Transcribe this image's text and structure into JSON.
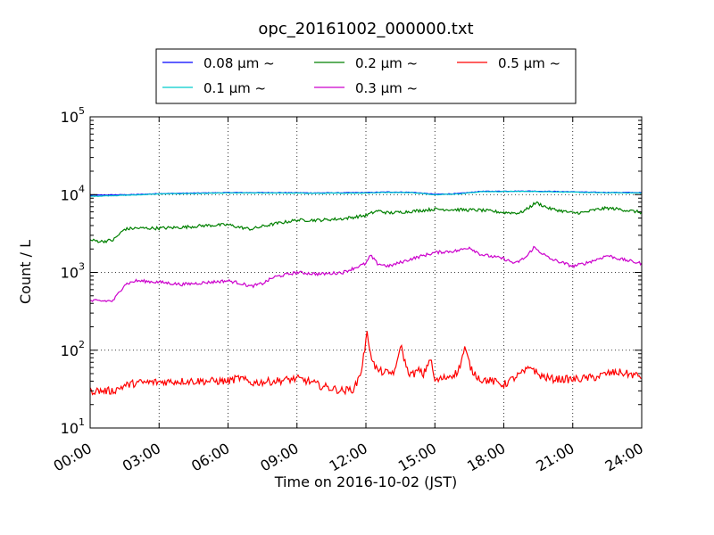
{
  "chart_data": {
    "type": "line",
    "title": "opc_20161002_000000.txt",
    "xlabel": "Time on 2016-10-02 (JST)",
    "ylabel": "Count / L",
    "y_scale": "log",
    "ylim": [
      10,
      100000
    ],
    "xlim_hours": [
      0,
      24
    ],
    "grid": true,
    "legend_placement": "top-center",
    "x_ticks": [
      "00:00",
      "03:00",
      "06:00",
      "09:00",
      "12:00",
      "15:00",
      "18:00",
      "21:00",
      "24:00"
    ],
    "x_tick_hours": [
      0,
      3,
      6,
      9,
      12,
      15,
      18,
      21,
      24
    ],
    "y_ticks": [
      {
        "base": "10",
        "exp": "1",
        "value": 10
      },
      {
        "base": "10",
        "exp": "2",
        "value": 100
      },
      {
        "base": "10",
        "exp": "3",
        "value": 1000
      },
      {
        "base": "10",
        "exp": "4",
        "value": 10000
      },
      {
        "base": "10",
        "exp": "5",
        "value": 100000
      }
    ],
    "series": [
      {
        "name": "0.08 μm ~",
        "color": "#0000ff",
        "points": [
          [
            0,
            9800
          ],
          [
            1,
            9900
          ],
          [
            2,
            10000
          ],
          [
            3,
            10300
          ],
          [
            4,
            10400
          ],
          [
            5,
            10500
          ],
          [
            6,
            10600
          ],
          [
            8,
            10600
          ],
          [
            10,
            10500
          ],
          [
            12,
            10600
          ],
          [
            13,
            10800
          ],
          [
            14,
            10700
          ],
          [
            15,
            10100
          ],
          [
            16,
            10300
          ],
          [
            17,
            11000
          ],
          [
            19,
            11100
          ],
          [
            20,
            11000
          ],
          [
            22,
            10700
          ],
          [
            24,
            10600
          ]
        ]
      },
      {
        "name": "0.1 μm ~",
        "color": "#00cccc",
        "points": [
          [
            0,
            9500
          ],
          [
            1,
            9700
          ],
          [
            2,
            9900
          ],
          [
            3,
            10200
          ],
          [
            4,
            10300
          ],
          [
            5,
            10400
          ],
          [
            6,
            10500
          ],
          [
            8,
            10500
          ],
          [
            10,
            10400
          ],
          [
            12,
            10500
          ],
          [
            13,
            10700
          ],
          [
            14,
            10600
          ],
          [
            15,
            10000
          ],
          [
            16,
            10200
          ],
          [
            17,
            10900
          ],
          [
            19,
            11000
          ],
          [
            20,
            10900
          ],
          [
            22,
            10600
          ],
          [
            24,
            10500
          ]
        ]
      },
      {
        "name": "0.2 μm ~",
        "color": "#008000",
        "points": [
          [
            0,
            2600
          ],
          [
            0.5,
            2500
          ],
          [
            1,
            2600
          ],
          [
            1.5,
            3600
          ],
          [
            2,
            3700
          ],
          [
            3,
            3700
          ],
          [
            4,
            3800
          ],
          [
            5,
            4000
          ],
          [
            6,
            4100
          ],
          [
            6.5,
            3800
          ],
          [
            7,
            3600
          ],
          [
            7.5,
            3900
          ],
          [
            8,
            4200
          ],
          [
            9,
            4700
          ],
          [
            10,
            4700
          ],
          [
            11,
            4900
          ],
          [
            12,
            5400
          ],
          [
            12.5,
            6200
          ],
          [
            13,
            5800
          ],
          [
            14,
            6100
          ],
          [
            15,
            6500
          ],
          [
            16,
            6400
          ],
          [
            17,
            6300
          ],
          [
            18,
            5900
          ],
          [
            18.7,
            5800
          ],
          [
            19,
            6500
          ],
          [
            19.4,
            7900
          ],
          [
            20,
            6600
          ],
          [
            21,
            5800
          ],
          [
            21.5,
            5900
          ],
          [
            22,
            6400
          ],
          [
            22.5,
            6700
          ],
          [
            23,
            6500
          ],
          [
            24,
            5900
          ]
        ]
      },
      {
        "name": "0.3 μm ~",
        "color": "#cc00cc",
        "points": [
          [
            0,
            430
          ],
          [
            1,
            430
          ],
          [
            1.5,
            700
          ],
          [
            2,
            780
          ],
          [
            3,
            750
          ],
          [
            4,
            700
          ],
          [
            5,
            740
          ],
          [
            6,
            780
          ],
          [
            6.5,
            730
          ],
          [
            7,
            660
          ],
          [
            7.5,
            720
          ],
          [
            8,
            870
          ],
          [
            9,
            1000
          ],
          [
            10,
            950
          ],
          [
            11,
            1000
          ],
          [
            12,
            1300
          ],
          [
            12.2,
            1650
          ],
          [
            12.5,
            1300
          ],
          [
            13,
            1200
          ],
          [
            14,
            1500
          ],
          [
            15,
            1800
          ],
          [
            16,
            1900
          ],
          [
            16.5,
            2100
          ],
          [
            17,
            1700
          ],
          [
            18,
            1500
          ],
          [
            18.5,
            1300
          ],
          [
            19,
            1600
          ],
          [
            19.3,
            2100
          ],
          [
            20,
            1500
          ],
          [
            21,
            1200
          ],
          [
            21.5,
            1300
          ],
          [
            22,
            1450
          ],
          [
            22.5,
            1650
          ],
          [
            23,
            1500
          ],
          [
            24,
            1300
          ]
        ]
      },
      {
        "name": "0.5 μm ~",
        "color": "#ff0000",
        "points": [
          [
            0,
            30
          ],
          [
            1,
            30
          ],
          [
            1.5,
            35
          ],
          [
            2,
            38
          ],
          [
            3,
            39
          ],
          [
            4,
            40
          ],
          [
            5,
            40
          ],
          [
            6,
            40
          ],
          [
            6.5,
            44
          ],
          [
            7,
            38
          ],
          [
            8,
            40
          ],
          [
            9,
            43
          ],
          [
            9.5,
            40
          ],
          [
            10,
            35
          ],
          [
            11,
            30
          ],
          [
            11.5,
            32
          ],
          [
            11.8,
            55
          ],
          [
            12.05,
            160
          ],
          [
            12.3,
            70
          ],
          [
            12.5,
            55
          ],
          [
            13,
            50
          ],
          [
            13.3,
            55
          ],
          [
            13.5,
            120
          ],
          [
            13.8,
            55
          ],
          [
            14,
            48
          ],
          [
            14.3,
            55
          ],
          [
            14.5,
            48
          ],
          [
            14.8,
            80
          ],
          [
            15,
            40
          ],
          [
            15.5,
            45
          ],
          [
            16,
            52
          ],
          [
            16.3,
            105
          ],
          [
            16.6,
            55
          ],
          [
            17,
            42
          ],
          [
            17.5,
            40
          ],
          [
            18,
            36
          ],
          [
            18.5,
            45
          ],
          [
            19,
            55
          ],
          [
            19.2,
            62
          ],
          [
            19.5,
            48
          ],
          [
            20,
            43
          ],
          [
            21,
            42
          ],
          [
            22,
            45
          ],
          [
            22.5,
            50
          ],
          [
            23,
            52
          ],
          [
            24,
            46
          ]
        ]
      }
    ]
  }
}
